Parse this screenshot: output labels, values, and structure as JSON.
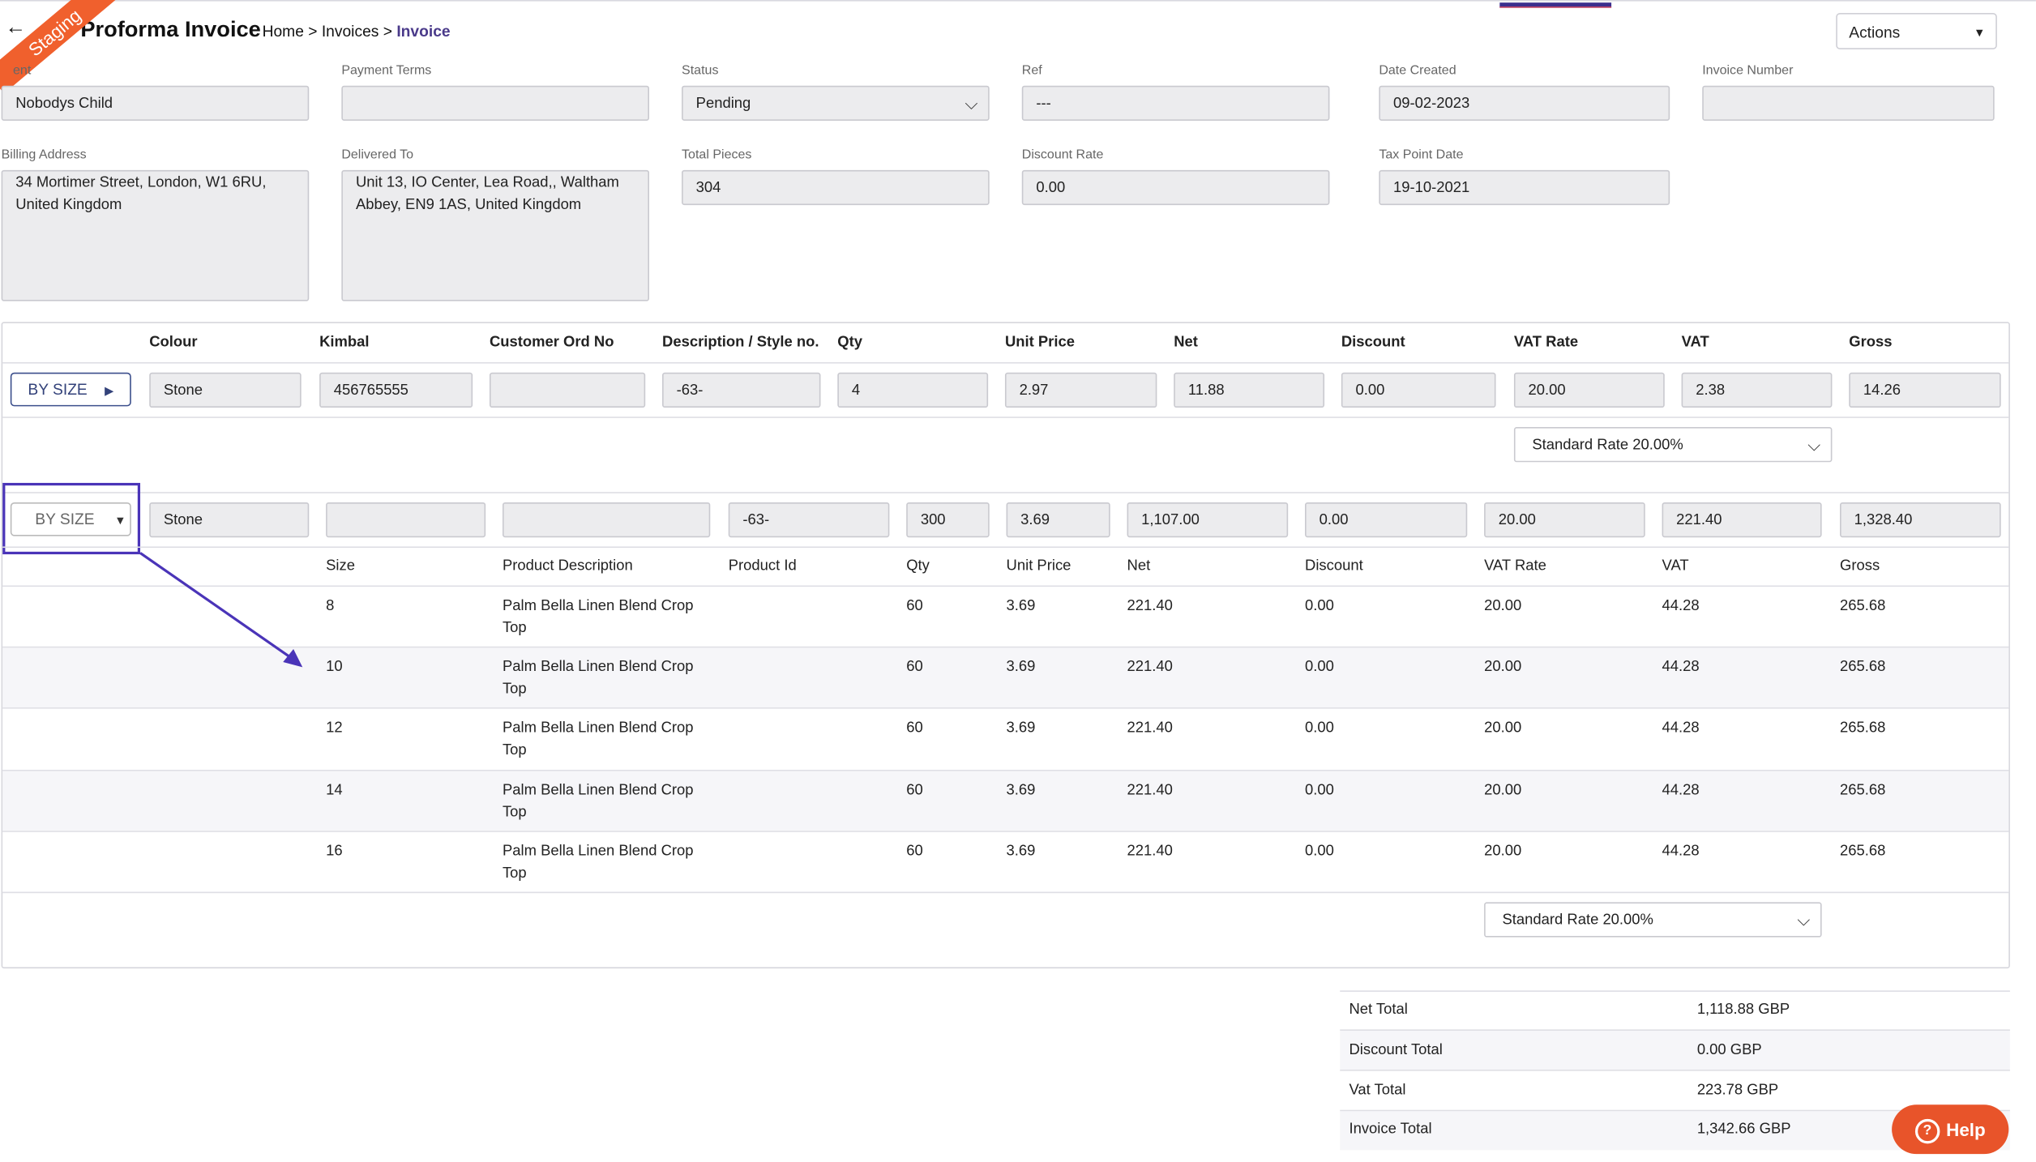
{
  "header": {
    "back_glyph": "←",
    "staging_label": "Staging",
    "title": "Proforma Invoice",
    "breadcrumb": {
      "home": "Home",
      "sep": ">",
      "invoices": "Invoices",
      "current": "Invoice"
    },
    "actions_label": "Actions"
  },
  "form": {
    "client": {
      "label": "ent",
      "value": "Nobodys Child"
    },
    "payment_terms": {
      "label": "Payment Terms",
      "value": ""
    },
    "status": {
      "label": "Status",
      "value": "Pending"
    },
    "ref": {
      "label": "Ref",
      "value": "---"
    },
    "date_created": {
      "label": "Date Created",
      "value": "09-02-2023"
    },
    "invoice_number": {
      "label": "Invoice Number",
      "value": ""
    },
    "billing_address": {
      "label": "Billing Address",
      "value": "34 Mortimer Street, London, W1 6RU, United Kingdom"
    },
    "delivered_to": {
      "label": "Delivered To",
      "value": "Unit 13, IO Center, Lea Road,, Waltham Abbey, EN9 1AS, United Kingdom"
    },
    "total_pieces": {
      "label": "Total Pieces",
      "value": "304"
    },
    "discount_rate": {
      "label": "Discount Rate",
      "value": "0.00"
    },
    "tax_point_date": {
      "label": "Tax Point Date",
      "value": "19-10-2021"
    }
  },
  "lines": {
    "headers": [
      "Colour",
      "Kimbal",
      "Customer Ord No",
      "Description / Style no.",
      "Qty",
      "Unit Price",
      "Net",
      "Discount",
      "VAT Rate",
      "VAT",
      "Gross"
    ],
    "line1": {
      "button": "BY SIZE",
      "colour": "Stone",
      "kimbal": "456765555",
      "customer_ord_no": "",
      "description": "-63-",
      "qty": "4",
      "unit_price": "2.97",
      "net": "11.88",
      "discount": "0.00",
      "vat_rate": "20.00",
      "vat": "2.38",
      "gross": "14.26",
      "vat_select": "Standard Rate 20.00%"
    },
    "line2": {
      "button": "BY SIZE",
      "colour": "Stone",
      "kimbal": "",
      "customer_ord_no": "",
      "description": "-63-",
      "qty": "300",
      "unit_price": "3.69",
      "net": "1,107.00",
      "discount": "0.00",
      "vat_rate": "20.00",
      "vat": "221.40",
      "gross": "1,328.40",
      "vat_select": "Standard Rate 20.00%"
    },
    "size_headers": [
      "Size",
      "Product Description",
      "Product Id",
      "Qty",
      "Unit Price",
      "Net",
      "Discount",
      "VAT Rate",
      "VAT",
      "Gross"
    ],
    "size_rows": [
      {
        "size": "8",
        "desc1": "Palm Bella Linen Blend Crop",
        "desc2": "Top",
        "pid": "",
        "qty": "60",
        "unit": "3.69",
        "net": "221.40",
        "disc": "0.00",
        "rate": "20.00",
        "vat": "44.28",
        "gross": "265.68"
      },
      {
        "size": "10",
        "desc1": "Palm Bella Linen Blend Crop",
        "desc2": "Top",
        "pid": "",
        "qty": "60",
        "unit": "3.69",
        "net": "221.40",
        "disc": "0.00",
        "rate": "20.00",
        "vat": "44.28",
        "gross": "265.68"
      },
      {
        "size": "12",
        "desc1": "Palm Bella Linen Blend Crop",
        "desc2": "Top",
        "pid": "",
        "qty": "60",
        "unit": "3.69",
        "net": "221.40",
        "disc": "0.00",
        "rate": "20.00",
        "vat": "44.28",
        "gross": "265.68"
      },
      {
        "size": "14",
        "desc1": "Palm Bella Linen Blend Crop",
        "desc2": "Top",
        "pid": "",
        "qty": "60",
        "unit": "3.69",
        "net": "221.40",
        "disc": "0.00",
        "rate": "20.00",
        "vat": "44.28",
        "gross": "265.68"
      },
      {
        "size": "16",
        "desc1": "Palm Bella Linen Blend Crop",
        "desc2": "Top",
        "pid": "",
        "qty": "60",
        "unit": "3.69",
        "net": "221.40",
        "disc": "0.00",
        "rate": "20.00",
        "vat": "44.28",
        "gross": "265.68"
      }
    ]
  },
  "totals": [
    {
      "label": "Net Total",
      "value": "1,118.88 GBP"
    },
    {
      "label": "Discount Total",
      "value": "0.00 GBP"
    },
    {
      "label": "Vat Total",
      "value": "223.78 GBP"
    },
    {
      "label": "Invoice Total",
      "value": "1,342.66 GBP"
    }
  ],
  "help_label": "Help",
  "colors": {
    "accent": "#3b2f8e",
    "staging": "#f0602d",
    "help": "#e8542a",
    "highlight": "#4a34b8"
  }
}
